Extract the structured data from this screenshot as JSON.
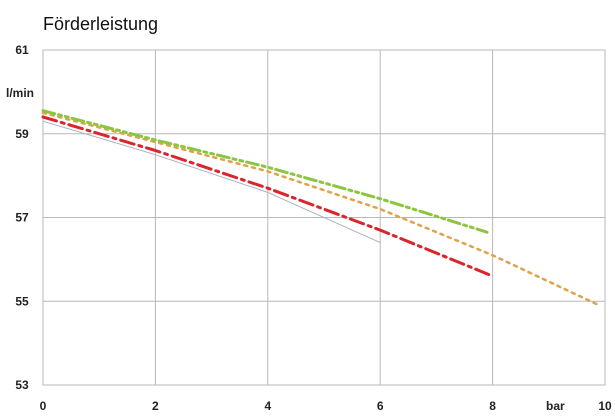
{
  "chart_data": {
    "type": "line",
    "title": "Förderleistung",
    "ylabel": "l/min",
    "xlabel": "bar",
    "xlim": [
      0,
      10
    ],
    "ylim": [
      53,
      61
    ],
    "xticks": [
      "0",
      "2",
      "4",
      "6",
      "8",
      "10"
    ],
    "yticks": [
      "53",
      "55",
      "57",
      "59",
      "61"
    ],
    "grid": true,
    "legend": "none",
    "series": [
      {
        "color": "#aab0bd",
        "style": "solid",
        "x": [
          0,
          2,
          4,
          6
        ],
        "y": [
          59.3,
          58.5,
          57.6,
          56.4
        ]
      },
      {
        "color": "#d9252b",
        "style": "dash-dot",
        "x": [
          0,
          2,
          4,
          6,
          8
        ],
        "y": [
          59.4,
          58.6,
          57.7,
          56.7,
          55.6
        ]
      },
      {
        "color": "#e0a24a",
        "style": "dotted",
        "x": [
          0,
          2,
          4,
          6,
          8,
          9.9
        ],
        "y": [
          59.5,
          58.8,
          58.1,
          57.2,
          56.1,
          54.9
        ]
      },
      {
        "color": "#8cc63f",
        "style": "dash-dot-dot",
        "x": [
          0,
          2,
          4,
          6,
          7.9
        ],
        "y": [
          59.55,
          58.85,
          58.2,
          57.45,
          56.65
        ]
      }
    ]
  }
}
